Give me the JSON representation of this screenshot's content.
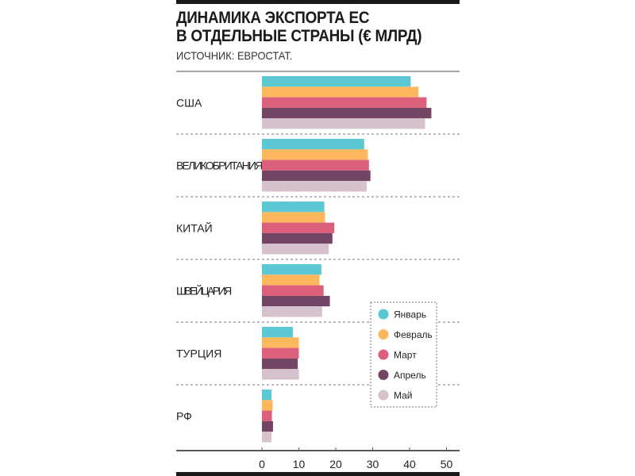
{
  "chart_data": {
    "type": "bar",
    "orientation": "horizontal",
    "title": "ДИНАМИКА ЭКСПОРТА ЕС В ОТДЕЛЬНЫЕ СТРАНЫ (€ МЛРД)",
    "title_lines": [
      "ДИНАМИКА ЭКСПОРТА ЕС",
      "В ОТДЕЛЬНЫЕ СТРАНЫ (€ МЛРД)"
    ],
    "subtitle": "ИСТОЧНИК: ЕВРОСТАТ.",
    "categories": [
      "США",
      "ВЕЛИКОБРИТАНИЯ",
      "КИТАЙ",
      "ШВЕЙЦАРИЯ",
      "ТУРЦИЯ",
      "РФ"
    ],
    "series": [
      {
        "name": "Январь",
        "color": "#5bc8d4",
        "values": [
          40.3,
          27.7,
          16.9,
          16.1,
          8.4,
          2.6
        ]
      },
      {
        "name": "Февраль",
        "color": "#fdb75c",
        "values": [
          42.4,
          28.7,
          17.1,
          15.6,
          10.0,
          2.9
        ]
      },
      {
        "name": "Март",
        "color": "#dc5f7b",
        "values": [
          44.6,
          29.0,
          19.6,
          16.7,
          10.0,
          2.7
        ]
      },
      {
        "name": "Апрель",
        "color": "#724565",
        "values": [
          45.9,
          29.4,
          19.1,
          18.4,
          9.7,
          3.0
        ]
      },
      {
        "name": "Май",
        "color": "#d6c2cd",
        "values": [
          44.2,
          28.4,
          18.1,
          16.3,
          10.0,
          2.6
        ]
      }
    ],
    "xticks": [
      0,
      10,
      20,
      30,
      40,
      50
    ],
    "xlim": [
      0,
      50
    ],
    "grid": false,
    "legend_position": "bottom-right"
  }
}
